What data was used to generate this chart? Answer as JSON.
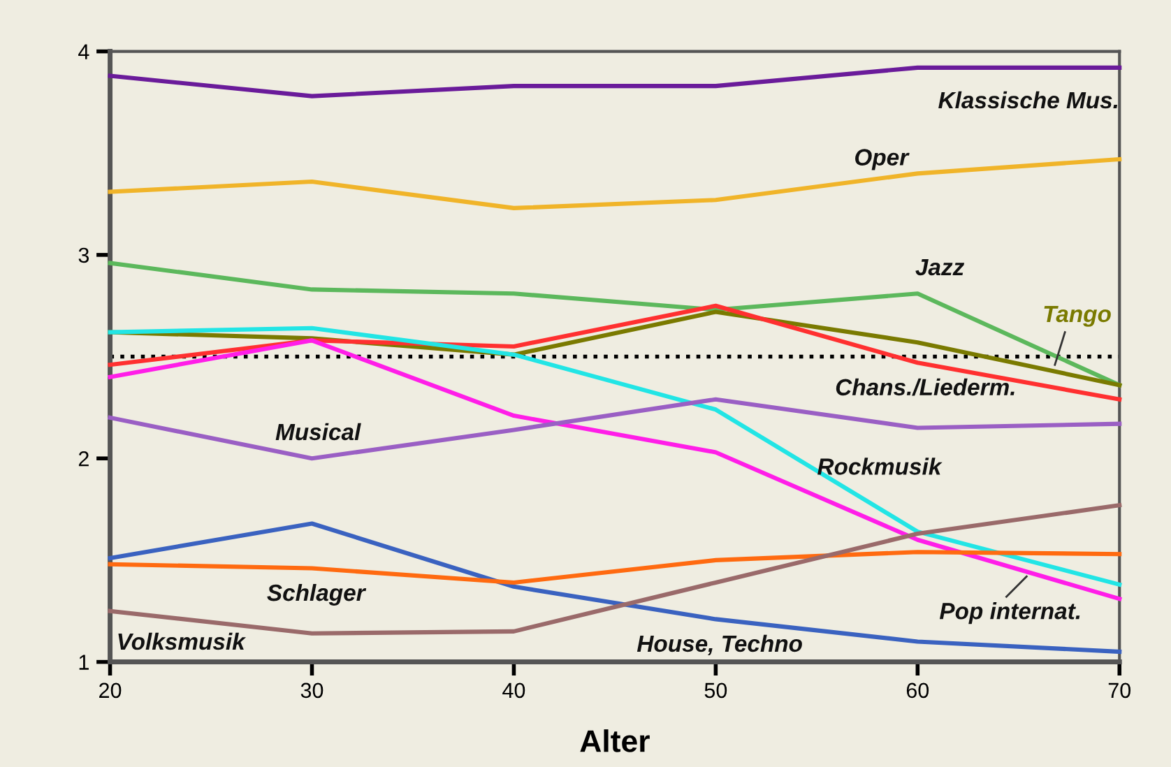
{
  "chart_data": {
    "type": "line",
    "xlabel": "Alter",
    "x": [
      20,
      30,
      40,
      50,
      60,
      70
    ],
    "xlim": [
      20,
      70
    ],
    "xticks": [
      20,
      30,
      40,
      50,
      60,
      70
    ],
    "ylim": [
      1,
      4
    ],
    "yticks": [
      1,
      2,
      3,
      4
    ],
    "grid": false,
    "legend": false,
    "marker": "none",
    "line_style": "solid",
    "series": [
      {
        "name": "Klassische Mus.",
        "color": "#6a1b9a",
        "values": [
          3.88,
          3.78,
          3.83,
          3.83,
          3.92,
          3.92
        ]
      },
      {
        "name": "Oper",
        "color": "#f0b429",
        "values": [
          3.31,
          3.36,
          3.23,
          3.27,
          3.4,
          3.47
        ]
      },
      {
        "name": "Jazz",
        "color": "#5cb85c",
        "values": [
          2.96,
          2.83,
          2.81,
          2.73,
          2.81,
          2.36
        ]
      },
      {
        "name": "Tango",
        "color": "#7a7a00",
        "values": [
          2.62,
          2.59,
          2.51,
          2.72,
          2.57,
          2.36
        ]
      },
      {
        "name": "Chans./Liederm.",
        "color": "#ff3030",
        "values": [
          2.46,
          2.58,
          2.55,
          2.75,
          2.47,
          2.29
        ]
      },
      {
        "name": "Rockmusik",
        "color": "#22e5e5",
        "values": [
          2.62,
          2.64,
          2.51,
          2.24,
          1.64,
          1.38
        ]
      },
      {
        "name": "Pop internat.",
        "color": "#ff1ee8",
        "values": [
          2.4,
          2.58,
          2.21,
          2.03,
          1.6,
          1.31
        ]
      },
      {
        "name": "Musical",
        "color": "#9a5fc4",
        "values": [
          2.2,
          2.0,
          2.14,
          2.29,
          2.15,
          2.17
        ]
      },
      {
        "name": "House, Techno",
        "color": "#3a62c0",
        "values": [
          1.51,
          1.68,
          1.37,
          1.21,
          1.1,
          1.05
        ]
      },
      {
        "name": "Schlager",
        "color": "#ff6a10",
        "values": [
          1.48,
          1.46,
          1.39,
          1.5,
          1.54,
          1.53
        ]
      },
      {
        "name": "Volksmusik",
        "color": "#9a6a6a",
        "values": [
          1.25,
          1.14,
          1.15,
          1.39,
          1.63,
          1.77
        ]
      }
    ],
    "ref_lines": [
      {
        "axis": "y",
        "value": 2.5,
        "color": "#000000",
        "line_style": "dotted"
      }
    ]
  }
}
